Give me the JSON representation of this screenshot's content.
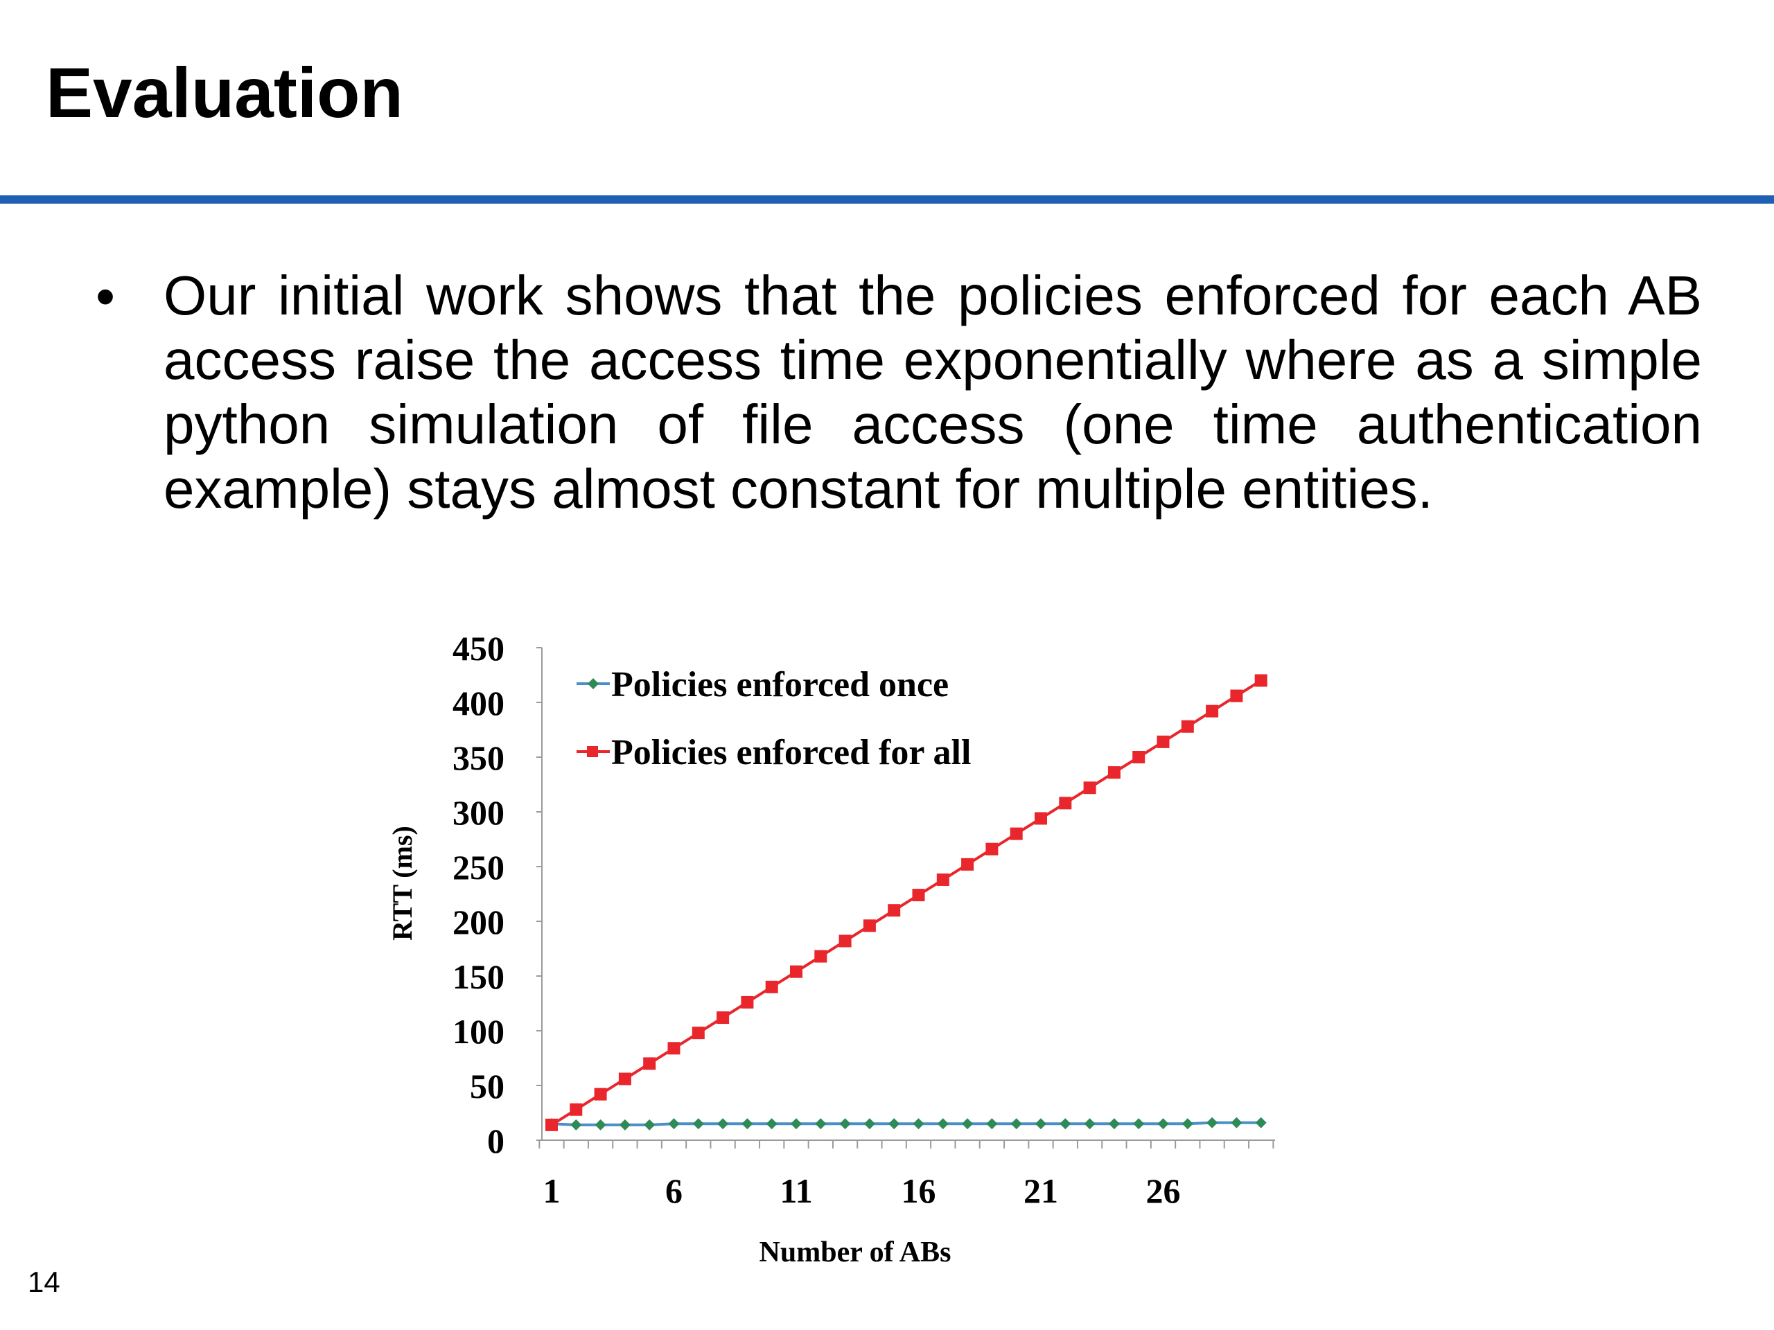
{
  "slide": {
    "title": "Evaluation",
    "bullet": "Our initial work shows that the policies enforced for each AB access raise the access time exponentially where as a simple python simulation of file access (one time authentication example) stays almost constant for multiple entities.",
    "page_number": "14",
    "rule_color": "#1f5fb4"
  },
  "chart_data": {
    "type": "line",
    "title": "",
    "xlabel": "Number of ABs",
    "ylabel": "RTT (ms)",
    "ylim": [
      0,
      450
    ],
    "yticks": [
      "0",
      "50",
      "100",
      "150",
      "200",
      "250",
      "300",
      "350",
      "400",
      "450"
    ],
    "xlim": [
      1,
      30
    ],
    "xtick_labels": [
      "1",
      "6",
      "11",
      "16",
      "21",
      "26"
    ],
    "xtick_values": [
      1,
      6,
      11,
      16,
      21,
      26
    ],
    "x": [
      1,
      2,
      3,
      4,
      5,
      6,
      7,
      8,
      9,
      10,
      11,
      12,
      13,
      14,
      15,
      16,
      17,
      18,
      19,
      20,
      21,
      22,
      23,
      24,
      25,
      26,
      27,
      28,
      29,
      30
    ],
    "legend_position": "top-left",
    "series": [
      {
        "name": "Policies enforced once",
        "color": "#2e8b57",
        "line_color": "#4a90c8",
        "marker": "diamond",
        "values": [
          15,
          14,
          14,
          14,
          14,
          15,
          15,
          15,
          15,
          15,
          15,
          15,
          15,
          15,
          15,
          15,
          15,
          15,
          15,
          15,
          15,
          15,
          15,
          15,
          15,
          15,
          15,
          16,
          16,
          16
        ]
      },
      {
        "name": "Policies enforced for all",
        "color": "#e8262b",
        "line_color": "#e8262b",
        "marker": "square",
        "values": [
          14,
          28,
          42,
          56,
          70,
          84,
          98,
          112,
          126,
          140,
          154,
          168,
          182,
          196,
          210,
          224,
          238,
          252,
          266,
          280,
          294,
          308,
          322,
          336,
          350,
          364,
          378,
          392,
          406,
          420
        ]
      }
    ]
  }
}
